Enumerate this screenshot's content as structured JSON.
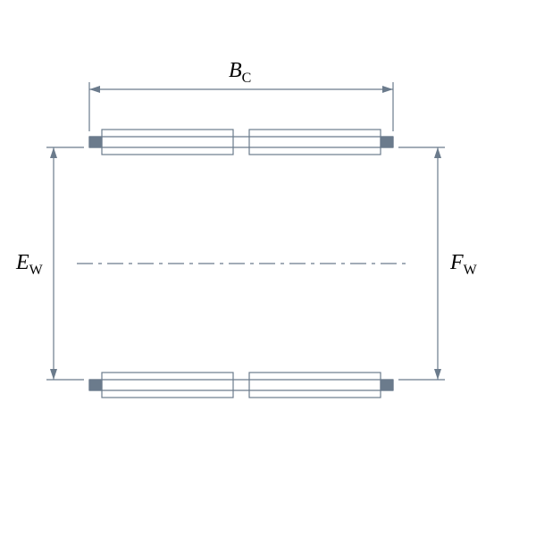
{
  "diagram": {
    "type": "engineering-dimension-drawing",
    "background_color": "#ffffff",
    "stroke_color": "#6b7b8c",
    "stroke_width": 1.2,
    "fill_color": "#6b7b8c",
    "text_color": "#000000",
    "font_family": "Georgia, serif",
    "font_style": "italic",
    "label_fontsize": 24,
    "subscript_fontsize": 16,
    "arrowhead_length": 12,
    "arrowhead_width": 4,
    "layout": {
      "bodyLeft": 100,
      "bodyRight": 440,
      "bodyMid": 270,
      "rollerInnerTop": 165,
      "rollerOuterTop": 153,
      "rollerInnerBot": 425,
      "rollerOuterBot": 437,
      "rollerH": 28,
      "capW": 14,
      "rollerGapHalf": 9,
      "centerY": 295,
      "dimTopY": 100,
      "dimLeftX": 60,
      "dimRightX": 490,
      "extGapTop": 6,
      "extOvershoot": 8,
      "dashSeg": [
        18,
        6,
        4,
        6
      ]
    },
    "labels": {
      "width": {
        "main": "B",
        "sub": "C"
      },
      "left": {
        "main": "E",
        "sub": "W"
      },
      "right": {
        "main": "F",
        "sub": "W"
      }
    }
  }
}
